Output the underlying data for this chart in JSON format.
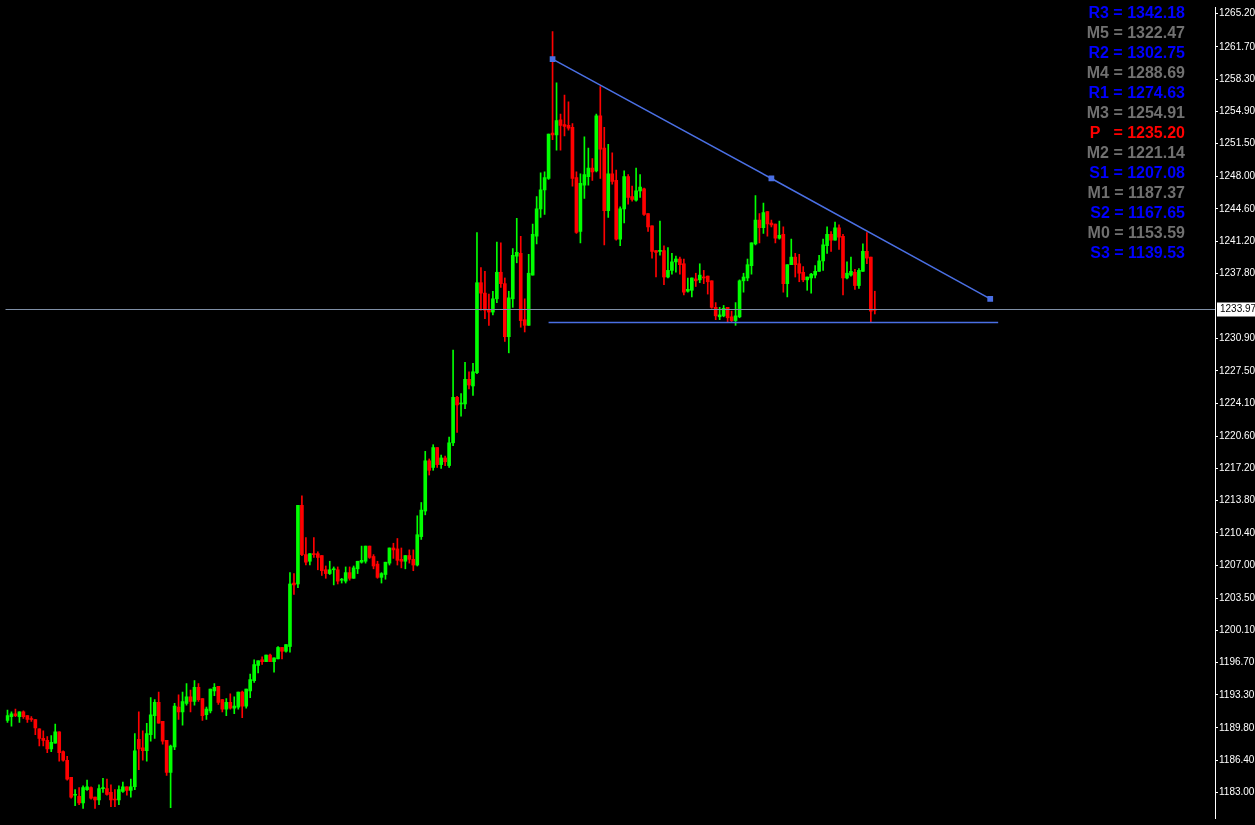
{
  "chart_data": {
    "type": "candlestick",
    "categories": [
      null,
      null,
      null,
      null,
      null,
      null,
      null,
      null,
      null,
      null,
      null,
      null,
      null,
      null,
      null,
      null,
      null,
      null,
      null,
      null,
      null,
      null,
      null,
      null,
      null,
      null,
      null,
      null,
      null,
      null,
      null,
      null,
      null,
      null,
      null,
      null,
      null,
      null,
      null,
      null,
      null,
      null,
      null,
      null,
      null,
      null,
      null,
      null,
      null,
      null,
      null,
      null,
      null,
      null,
      null,
      null,
      null,
      null,
      null,
      null,
      null,
      null,
      null,
      null,
      null,
      null,
      null,
      null,
      null,
      null,
      null,
      null,
      null,
      null,
      null,
      null,
      null,
      null,
      null,
      null,
      null,
      null,
      null,
      null,
      null,
      null,
      null,
      null,
      null,
      null,
      null,
      null,
      null,
      null,
      null,
      null,
      null,
      null,
      null,
      null,
      null,
      null,
      null,
      null,
      null,
      null,
      null,
      null,
      null,
      null,
      null,
      null,
      null,
      null,
      null,
      null,
      null,
      null,
      null,
      null,
      null,
      null,
      null,
      null,
      null,
      null,
      null,
      null,
      null,
      null,
      null,
      null,
      null,
      null,
      null,
      null,
      null,
      null,
      null,
      null,
      null,
      null,
      null,
      null,
      null,
      null,
      null,
      null,
      null,
      null,
      null,
      null,
      null,
      null,
      null,
      null,
      null,
      null,
      null,
      null,
      null,
      null,
      null,
      null,
      null,
      null,
      null,
      null,
      null,
      null,
      null,
      null,
      null,
      null,
      null,
      null,
      null,
      null,
      null,
      null,
      null,
      null,
      null,
      null,
      null,
      null,
      null,
      null,
      null,
      null,
      null,
      null,
      null,
      null,
      null,
      null,
      null,
      null,
      null,
      null,
      null,
      null,
      null,
      null,
      null,
      null,
      null,
      null,
      null,
      null,
      null,
      null,
      null,
      null,
      null,
      null,
      null,
      null,
      null,
      null,
      null,
      null,
      null,
      null,
      null,
      null,
      null,
      null,
      null,
      null,
      null,
      null,
      null,
      null,
      null,
      null,
      null,
      null,
      null,
      null,
      null,
      null,
      null,
      null,
      null,
      null,
      null,
      null,
      null,
      null,
      null,
      null,
      null,
      null,
      null,
      null,
      null,
      null,
      null,
      null,
      null,
      null,
      null,
      null,
      null,
      null,
      null,
      null,
      null,
      null,
      null,
      null,
      null,
      null,
      null,
      null,
      null,
      null,
      null,
      null,
      null,
      null,
      null,
      null,
      null,
      null,
      null,
      null,
      null,
      null,
      null,
      null,
      null,
      null,
      null,
      null,
      null,
      null,
      null,
      null,
      null,
      null,
      null,
      null
    ],
    "ohlc": [
      [
        1190.6,
        1191.7,
        1190.4,
        1191.1
      ],
      [
        1191.0,
        1191.5,
        1190.0,
        1191.3
      ],
      [
        1191.3,
        1191.8,
        1191.0,
        1191.1
      ],
      [
        1191.0,
        1191.5,
        1190.4,
        1191.5
      ],
      [
        1191.5,
        1191.6,
        1190.8,
        1191.0
      ],
      [
        1191.1,
        1191.1,
        1190.4,
        1190.7
      ],
      [
        1190.8,
        1191.0,
        1190.5,
        1190.7
      ],
      [
        1190.7,
        1190.7,
        1189.1,
        1189.8
      ],
      [
        1189.7,
        1189.7,
        1187.9,
        1188.7
      ],
      [
        1188.7,
        1189.5,
        1187.9,
        1188.5
      ],
      [
        1188.5,
        1188.9,
        1187.2,
        1187.6
      ],
      [
        1187.6,
        1189.0,
        1187.3,
        1188.3
      ],
      [
        1188.2,
        1190.2,
        1188.2,
        1189.4
      ],
      [
        1189.4,
        1189.4,
        1186.3,
        1187.2
      ],
      [
        1187.3,
        1187.4,
        1186.3,
        1186.4
      ],
      [
        1186.4,
        1186.8,
        1184.3,
        1184.4
      ],
      [
        1184.6,
        1184.6,
        1182.4,
        1182.5
      ],
      [
        1182.7,
        1183.3,
        1181.6,
        1182.7
      ],
      [
        1182.6,
        1183.5,
        1181.7,
        1181.9
      ],
      [
        1181.9,
        1183.7,
        1181.3,
        1183.5
      ],
      [
        1183.3,
        1184.3,
        1183.2,
        1183.6
      ],
      [
        1183.5,
        1183.6,
        1182.3,
        1182.4
      ],
      [
        1182.5,
        1182.5,
        1181.3,
        1182.2
      ],
      [
        1182.2,
        1183.8,
        1181.7,
        1183.4
      ],
      [
        1183.4,
        1184.5,
        1183.0,
        1183.4
      ],
      [
        1183.4,
        1184.4,
        1182.7,
        1182.8
      ],
      [
        1183.0,
        1183.8,
        1181.5,
        1182.2
      ],
      [
        1182.3,
        1183.3,
        1181.5,
        1182.2
      ],
      [
        1182.2,
        1183.7,
        1181.7,
        1183.3
      ],
      [
        1183.1,
        1184.1,
        1183.0,
        1183.6
      ],
      [
        1183.6,
        1183.6,
        1182.7,
        1183.2
      ],
      [
        1183.2,
        1184.4,
        1182.5,
        1183.6
      ],
      [
        1183.6,
        1189.2,
        1183.3,
        1187.4
      ],
      [
        1188.6,
        1191.5,
        1185.4,
        1187.6
      ],
      [
        1187.7,
        1189.5,
        1186.4,
        1187.4
      ],
      [
        1187.4,
        1190.3,
        1186.3,
        1189.2
      ],
      [
        1189.1,
        1193.0,
        1188.4,
        1191.2
      ],
      [
        1191.1,
        1192.8,
        1188.7,
        1192.5
      ],
      [
        1192.5,
        1193.6,
        1190.3,
        1190.3
      ],
      [
        1190.5,
        1190.5,
        1188.1,
        1188.4
      ],
      [
        1188.5,
        1188.5,
        1184.8,
        1185.1
      ],
      [
        1185.1,
        1188.0,
        1181.4,
        1187.9
      ],
      [
        1187.8,
        1192.4,
        1187.5,
        1192.1
      ],
      [
        1192.0,
        1193.3,
        1190.7,
        1191.5
      ],
      [
        1191.5,
        1193.6,
        1190.1,
        1192.6
      ],
      [
        1192.4,
        1194.5,
        1192.2,
        1193.1
      ],
      [
        1193.1,
        1193.8,
        1191.5,
        1192.6
      ],
      [
        1192.6,
        1194.8,
        1192.2,
        1194.1
      ],
      [
        1194.1,
        1194.5,
        1192.6,
        1192.8
      ],
      [
        1192.9,
        1192.9,
        1190.6,
        1191.1
      ],
      [
        1191.2,
        1192.0,
        1190.7,
        1191.8
      ],
      [
        1191.6,
        1193.9,
        1191.4,
        1193.9
      ],
      [
        1193.7,
        1194.5,
        1193.2,
        1194.1
      ],
      [
        1194.2,
        1194.2,
        1192.3,
        1192.5
      ],
      [
        1192.8,
        1192.8,
        1191.5,
        1191.8
      ],
      [
        1191.8,
        1192.9,
        1191.1,
        1192.5
      ],
      [
        1192.5,
        1193.4,
        1191.8,
        1191.9
      ],
      [
        1191.9,
        1193.1,
        1191.3,
        1192.1
      ],
      [
        1192.0,
        1193.6,
        1191.8,
        1193.6
      ],
      [
        1193.6,
        1193.7,
        1190.9,
        1192.1
      ],
      [
        1192.1,
        1193.9,
        1191.9,
        1193.9
      ],
      [
        1193.7,
        1195.5,
        1193.0,
        1194.9
      ],
      [
        1194.8,
        1197.0,
        1194.6,
        1196.5
      ],
      [
        1196.4,
        1196.9,
        1195.6,
        1196.9
      ],
      [
        1197.0,
        1197.3,
        1196.5,
        1196.8
      ],
      [
        1196.8,
        1197.5,
        1196.8,
        1197.5
      ],
      [
        1197.5,
        1197.6,
        1196.8,
        1196.8
      ],
      [
        1196.8,
        1197.2,
        1195.7,
        1197.2
      ],
      [
        1197.1,
        1198.4,
        1197.1,
        1198.3
      ],
      [
        1198.3,
        1198.3,
        1197.1,
        1197.9
      ],
      [
        1197.9,
        1198.6,
        1197.8,
        1198.6
      ],
      [
        1198.4,
        1206.2,
        1197.8,
        1205.0
      ],
      [
        1205.1,
        1206.1,
        1203.9,
        1204.9
      ],
      [
        1205.0,
        1213.3,
        1204.6,
        1213.3
      ],
      [
        1213.3,
        1214.3,
        1208.0,
        1208.1
      ],
      [
        1208.1,
        1209.9,
        1207.0,
        1207.3
      ],
      [
        1207.4,
        1208.2,
        1207.0,
        1208.2
      ],
      [
        1208.2,
        1209.9,
        1207.8,
        1208.1
      ],
      [
        1208.2,
        1208.4,
        1206.5,
        1207.8
      ],
      [
        1208.0,
        1208.0,
        1205.9,
        1206.4
      ],
      [
        1206.5,
        1206.9,
        1205.6,
        1206.1
      ],
      [
        1206.1,
        1207.4,
        1206.0,
        1206.5
      ],
      [
        1206.5,
        1206.8,
        1204.9,
        1206.6
      ],
      [
        1206.5,
        1206.8,
        1205.0,
        1205.3
      ],
      [
        1205.4,
        1205.6,
        1205.1,
        1205.5
      ],
      [
        1205.3,
        1206.8,
        1205.1,
        1206.2
      ],
      [
        1206.2,
        1206.8,
        1205.4,
        1205.6
      ],
      [
        1205.6,
        1206.9,
        1205.6,
        1206.7
      ],
      [
        1206.6,
        1207.4,
        1206.1,
        1207.4
      ],
      [
        1207.3,
        1209.0,
        1207.2,
        1207.5
      ],
      [
        1207.4,
        1209.0,
        1207.2,
        1209.0
      ],
      [
        1209.0,
        1209.0,
        1207.7,
        1207.8
      ],
      [
        1207.9,
        1208.1,
        1206.6,
        1206.9
      ],
      [
        1207.1,
        1207.4,
        1205.6,
        1205.7
      ],
      [
        1205.7,
        1206.2,
        1205.1,
        1206.1
      ],
      [
        1206.0,
        1207.3,
        1205.5,
        1207.3
      ],
      [
        1207.2,
        1208.8,
        1207.0,
        1208.8
      ],
      [
        1208.8,
        1209.3,
        1207.7,
        1208.6
      ],
      [
        1208.7,
        1209.8,
        1207.0,
        1207.5
      ],
      [
        1207.6,
        1208.8,
        1206.7,
        1207.4
      ],
      [
        1207.4,
        1208.0,
        1206.6,
        1208.0
      ],
      [
        1208.0,
        1208.6,
        1207.2,
        1207.6
      ],
      [
        1207.6,
        1208.6,
        1206.4,
        1207.0
      ],
      [
        1207.0,
        1212.2,
        1206.9,
        1210.2
      ],
      [
        1210.0,
        1213.6,
        1209.7,
        1212.8
      ],
      [
        1212.7,
        1219.0,
        1212.3,
        1218.0
      ],
      [
        1218.0,
        1218.2,
        1216.5,
        1217.0
      ],
      [
        1217.3,
        1219.7,
        1217.0,
        1219.4
      ],
      [
        1219.4,
        1219.4,
        1217.3,
        1217.6
      ],
      [
        1217.6,
        1218.6,
        1217.2,
        1218.3
      ],
      [
        1218.3,
        1218.5,
        1217.5,
        1217.9
      ],
      [
        1217.5,
        1220.5,
        1217.3,
        1219.9
      ],
      [
        1219.9,
        1229.7,
        1219.6,
        1224.7
      ],
      [
        1224.7,
        1224.8,
        1221.0,
        1223.9
      ],
      [
        1224.0,
        1225.1,
        1222.7,
        1224.1
      ],
      [
        1224.0,
        1228.4,
        1223.5,
        1226.6
      ],
      [
        1226.6,
        1227.4,
        1225.6,
        1226.0
      ],
      [
        1225.9,
        1228.3,
        1224.9,
        1227.4
      ],
      [
        1227.3,
        1242.1,
        1227.2,
        1236.8
      ],
      [
        1236.8,
        1238.4,
        1233.9,
        1235.7
      ],
      [
        1235.7,
        1238.0,
        1233.0,
        1233.9
      ],
      [
        1233.9,
        1235.6,
        1232.3,
        1233.7
      ],
      [
        1233.7,
        1235.9,
        1233.4,
        1235.1
      ],
      [
        1235.1,
        1241.1,
        1234.7,
        1237.9
      ],
      [
        1237.9,
        1241.0,
        1236.3,
        1236.7
      ],
      [
        1236.7,
        1237.3,
        1230.6,
        1231.1
      ],
      [
        1231.1,
        1235.9,
        1229.4,
        1235.2
      ],
      [
        1235.1,
        1240.4,
        1234.2,
        1239.7
      ],
      [
        1239.6,
        1243.6,
        1238.9,
        1240.0
      ],
      [
        1239.9,
        1241.7,
        1232.1,
        1232.8
      ],
      [
        1232.9,
        1235.1,
        1231.6,
        1232.3
      ],
      [
        1232.3,
        1239.8,
        1232.3,
        1237.8
      ],
      [
        1237.6,
        1243.0,
        1237.6,
        1241.9
      ],
      [
        1241.7,
        1245.9,
        1240.9,
        1244.6
      ],
      [
        1244.6,
        1248.4,
        1243.7,
        1246.6
      ],
      [
        1246.6,
        1248.5,
        1244.0,
        1247.9
      ],
      [
        1247.8,
        1252.5,
        1247.7,
        1252.5
      ],
      [
        1252.6,
        1263.3,
        1251.9,
        1252.4
      ],
      [
        1252.4,
        1257.9,
        1250.8,
        1253.9
      ],
      [
        1254.0,
        1254.6,
        1250.8,
        1253.4
      ],
      [
        1253.5,
        1256.6,
        1252.3,
        1253.3
      ],
      [
        1253.4,
        1255.9,
        1252.9,
        1253.1
      ],
      [
        1253.2,
        1253.6,
        1247.0,
        1247.8
      ],
      [
        1247.9,
        1248.5,
        1242.0,
        1242.1
      ],
      [
        1242.2,
        1248.3,
        1241.0,
        1247.3
      ],
      [
        1247.1,
        1252.2,
        1245.7,
        1248.2
      ],
      [
        1248.0,
        1251.0,
        1247.1,
        1248.9
      ],
      [
        1248.9,
        1249.9,
        1247.6,
        1248.5
      ],
      [
        1248.6,
        1254.6,
        1248.5,
        1254.4
      ],
      [
        1254.4,
        1257.5,
        1247.8,
        1250.9
      ],
      [
        1251.0,
        1253.2,
        1240.8,
        1244.4
      ],
      [
        1244.4,
        1251.4,
        1243.7,
        1248.3
      ],
      [
        1248.3,
        1250.5,
        1247.2,
        1247.5
      ],
      [
        1247.6,
        1248.7,
        1241.3,
        1241.4
      ],
      [
        1241.4,
        1244.8,
        1240.7,
        1244.6
      ],
      [
        1244.6,
        1248.6,
        1243.1,
        1248.0
      ],
      [
        1248.0,
        1248.2,
        1245.1,
        1245.8
      ],
      [
        1245.9,
        1247.0,
        1245.4,
        1245.6
      ],
      [
        1245.5,
        1248.9,
        1245.4,
        1246.5
      ],
      [
        1246.5,
        1248.2,
        1245.8,
        1246.9
      ],
      [
        1246.7,
        1246.8,
        1243.9,
        1244.0
      ],
      [
        1244.1,
        1244.1,
        1242.2,
        1242.7
      ],
      [
        1242.8,
        1242.8,
        1239.4,
        1240.1
      ],
      [
        1240.2,
        1240.2,
        1237.4,
        1240.0
      ],
      [
        1240.1,
        1243.3,
        1239.7,
        1240.2
      ],
      [
        1240.2,
        1240.7,
        1236.6,
        1237.4
      ],
      [
        1237.4,
        1240.5,
        1237.3,
        1238.1
      ],
      [
        1238.1,
        1239.9,
        1237.7,
        1239.0
      ],
      [
        1239.0,
        1239.6,
        1237.9,
        1239.3
      ],
      [
        1239.3,
        1239.5,
        1237.7,
        1238.7
      ],
      [
        1238.8,
        1239.3,
        1235.5,
        1235.8
      ],
      [
        1235.9,
        1237.3,
        1235.8,
        1236.1
      ],
      [
        1236.0,
        1237.3,
        1235.3,
        1237.3
      ],
      [
        1237.2,
        1237.8,
        1236.4,
        1237.0
      ],
      [
        1237.1,
        1238.8,
        1236.8,
        1237.6
      ],
      [
        1237.4,
        1238.1,
        1236.7,
        1237.3
      ],
      [
        1237.5,
        1237.5,
        1235.6,
        1236.9
      ],
      [
        1237.0,
        1237.0,
        1234.1,
        1234.2
      ],
      [
        1234.2,
        1234.7,
        1232.9,
        1233.3
      ],
      [
        1233.2,
        1234.2,
        1232.9,
        1233.4
      ],
      [
        1233.3,
        1234.4,
        1233.2,
        1234.1
      ],
      [
        1234.2,
        1234.2,
        1232.6,
        1233.1
      ],
      [
        1233.2,
        1233.8,
        1232.7,
        1232.8
      ],
      [
        1232.8,
        1234.7,
        1232.3,
        1233.3
      ],
      [
        1233.2,
        1237.1,
        1233.1,
        1237.0
      ],
      [
        1237.0,
        1237.8,
        1235.8,
        1237.4
      ],
      [
        1237.3,
        1239.3,
        1237.0,
        1238.7
      ],
      [
        1238.6,
        1241.0,
        1237.7,
        1241.0
      ],
      [
        1240.9,
        1246.0,
        1240.8,
        1243.4
      ],
      [
        1243.4,
        1244.1,
        1241.0,
        1242.6
      ],
      [
        1242.6,
        1245.2,
        1242.0,
        1244.2
      ],
      [
        1244.3,
        1244.3,
        1241.7,
        1243.0
      ],
      [
        1243.1,
        1243.4,
        1242.7,
        1242.9
      ],
      [
        1243.0,
        1243.0,
        1241.0,
        1241.5
      ],
      [
        1241.5,
        1243.3,
        1241.4,
        1241.8
      ],
      [
        1241.9,
        1242.7,
        1235.8,
        1236.7
      ],
      [
        1236.7,
        1238.7,
        1235.3,
        1238.7
      ],
      [
        1238.7,
        1241.4,
        1238.7,
        1239.5
      ],
      [
        1239.5,
        1239.9,
        1237.4,
        1238.7
      ],
      [
        1238.8,
        1239.8,
        1236.9,
        1237.8
      ],
      [
        1237.9,
        1238.5,
        1236.9,
        1237.1
      ],
      [
        1237.1,
        1237.4,
        1236.0,
        1237.4
      ],
      [
        1237.3,
        1237.8,
        1235.7,
        1237.7
      ],
      [
        1237.6,
        1238.6,
        1237.3,
        1238.0
      ],
      [
        1238.0,
        1239.7,
        1238.0,
        1239.1
      ],
      [
        1239.1,
        1241.4,
        1238.1,
        1240.8
      ],
      [
        1240.7,
        1242.7,
        1239.9,
        1241.9
      ],
      [
        1241.9,
        1242.2,
        1240.1,
        1241.3
      ],
      [
        1241.3,
        1243.2,
        1241.3,
        1242.6
      ],
      [
        1242.6,
        1242.9,
        1240.3,
        1241.6
      ],
      [
        1241.7,
        1241.9,
        1235.5,
        1237.3
      ],
      [
        1237.3,
        1239.0,
        1237.2,
        1237.8
      ],
      [
        1237.6,
        1239.5,
        1237.5,
        1238.0
      ],
      [
        1237.9,
        1238.2,
        1236.1,
        1236.5
      ],
      [
        1236.5,
        1238.3,
        1236.2,
        1238.1
      ],
      [
        1238.0,
        1240.9,
        1238.0,
        1240.1
      ],
      [
        1240.1,
        1242.1,
        1238.8,
        1239.4
      ],
      [
        1239.5,
        1239.5,
        1232.6,
        1233.8
      ],
      [
        1234.0,
        1235.9,
        1233.5,
        1233.9
      ],
      null,
      null,
      null,
      null,
      null,
      null,
      null,
      null,
      null,
      null,
      null,
      null,
      null,
      null,
      null,
      null,
      null,
      null,
      null,
      null,
      null,
      null,
      null,
      null,
      null,
      null,
      null,
      null,
      null,
      null,
      null,
      null,
      null,
      null,
      null,
      null,
      null,
      null,
      null,
      null,
      null,
      null,
      null,
      null,
      null,
      null,
      null,
      null,
      null,
      null,
      null,
      null,
      null,
      null,
      null,
      null,
      null,
      null,
      null,
      null,
      null,
      null,
      null,
      null,
      null,
      null,
      null,
      null,
      null,
      null,
      null,
      null,
      null,
      null,
      null,
      null,
      null,
      null,
      null,
      null,
      null,
      null,
      null,
      null,
      null
    ],
    "colors": [
      "#00ff00",
      "#00ff00",
      "#ff0000",
      "#00ff00",
      "#ff0000",
      "#ff0000",
      "#ff0000",
      "#ff0000",
      "#ff0000",
      "#ff0000",
      "#ff0000",
      "#00ff00",
      "#00ff00",
      "#ff0000",
      "#ff0000",
      "#ff0000",
      "#ff0000",
      "#00ff00",
      "#ff0000",
      "#00ff00",
      "#00ff00",
      "#ff0000",
      "#ff0000",
      "#00ff00",
      "#00ff00",
      "#ff0000",
      "#ff0000",
      "#ff0000",
      "#00ff00",
      "#00ff00",
      "#ff0000",
      "#00ff00",
      "#00ff00",
      "#ff0000",
      "#ff0000",
      "#00ff00",
      "#00ff00",
      "#00ff00",
      "#ff0000",
      "#ff0000",
      "#ff0000",
      "#00ff00",
      "#00ff00",
      "#ff0000",
      "#00ff00",
      "#00ff00",
      "#ff0000",
      "#00ff00",
      "#ff0000",
      "#ff0000",
      "#00ff00",
      "#00ff00",
      "#00ff00",
      "#ff0000",
      "#ff0000",
      "#00ff00",
      "#ff0000",
      "#00ff00",
      "#00ff00",
      "#ff0000",
      "#00ff00",
      "#00ff00",
      "#00ff00",
      "#00ff00",
      "#ff0000",
      "#00ff00",
      "#ff0000",
      "#00ff00",
      "#00ff00",
      "#ff0000",
      "#00ff00",
      "#00ff00",
      "#ff0000",
      "#00ff00",
      "#ff0000",
      "#ff0000",
      "#00ff00",
      "#ff0000",
      "#ff0000",
      "#ff0000",
      "#ff0000",
      "#00ff00",
      "#00ff00",
      "#ff0000",
      "#00ff00",
      "#00ff00",
      "#ff0000",
      "#00ff00",
      "#00ff00",
      "#00ff00",
      "#00ff00",
      "#ff0000",
      "#ff0000",
      "#ff0000",
      "#00ff00",
      "#00ff00",
      "#00ff00",
      "#ff0000",
      "#ff0000",
      "#ff0000",
      "#00ff00",
      "#ff0000",
      "#ff0000",
      "#00ff00",
      "#00ff00",
      "#00ff00",
      "#ff0000",
      "#00ff00",
      "#ff0000",
      "#00ff00",
      "#ff0000",
      "#00ff00",
      "#00ff00",
      "#ff0000",
      "#00ff00",
      "#00ff00",
      "#ff0000",
      "#00ff00",
      "#00ff00",
      "#ff0000",
      "#ff0000",
      "#ff0000",
      "#00ff00",
      "#00ff00",
      "#ff0000",
      "#ff0000",
      "#00ff00",
      "#00ff00",
      "#00ff00",
      "#ff0000",
      "#ff0000",
      "#00ff00",
      "#00ff00",
      "#00ff00",
      "#00ff00",
      "#00ff00",
      "#00ff00",
      "#ff0000",
      "#00ff00",
      "#ff0000",
      "#ff0000",
      "#ff0000",
      "#ff0000",
      "#ff0000",
      "#00ff00",
      "#00ff00",
      "#00ff00",
      "#ff0000",
      "#00ff00",
      "#ff0000",
      "#ff0000",
      "#00ff00",
      "#ff0000",
      "#ff0000",
      "#00ff00",
      "#00ff00",
      "#ff0000",
      "#ff0000",
      "#00ff00",
      "#00ff00",
      "#ff0000",
      "#ff0000",
      "#ff0000",
      "#ff0000",
      "#00ff00",
      "#ff0000",
      "#00ff00",
      "#00ff00",
      "#00ff00",
      "#ff0000",
      "#ff0000",
      "#00ff00",
      "#00ff00",
      "#ff0000",
      "#00ff00",
      "#ff0000",
      "#ff0000",
      "#ff0000",
      "#ff0000",
      "#00ff00",
      "#00ff00",
      "#ff0000",
      "#ff0000",
      "#00ff00",
      "#00ff00",
      "#00ff00",
      "#00ff00",
      "#00ff00",
      "#00ff00",
      "#ff0000",
      "#00ff00",
      "#ff0000",
      "#ff0000",
      "#ff0000",
      "#00ff00",
      "#ff0000",
      "#00ff00",
      "#00ff00",
      "#ff0000",
      "#ff0000",
      "#ff0000",
      "#00ff00",
      "#00ff00",
      "#00ff00",
      "#00ff00",
      "#00ff00",
      "#00ff00",
      "#ff0000",
      "#00ff00",
      "#ff0000",
      "#ff0000",
      "#00ff00",
      "#00ff00",
      "#ff0000",
      "#00ff00",
      "#00ff00",
      "#ff0000",
      "#ff0000",
      "#ff0000",
      null,
      null,
      null,
      null,
      null,
      null,
      null,
      null,
      null,
      null,
      null,
      null,
      null,
      null,
      null,
      null,
      null,
      null,
      null,
      null,
      null,
      null,
      null,
      null,
      null,
      null,
      null,
      null,
      null,
      null,
      null,
      null,
      null,
      null,
      null,
      null,
      null,
      null,
      null,
      null,
      null,
      null,
      null,
      null,
      null,
      null,
      null,
      null,
      null,
      null,
      null,
      null,
      null,
      null,
      null,
      null,
      null,
      null,
      null,
      null,
      null,
      null,
      null,
      null,
      null,
      null,
      null,
      null,
      null,
      null,
      null,
      null,
      null,
      null,
      null,
      null,
      null,
      null,
      null,
      null,
      null,
      null,
      null,
      null,
      null
    ],
    "series": [
      {
        "type": "line",
        "color": "#4a6fe3",
        "marker": "square",
        "values": [
          null,
          null,
          null,
          null,
          null,
          null,
          null,
          null,
          null,
          null,
          null,
          null,
          null,
          null,
          null,
          null,
          null,
          null,
          null,
          null,
          null,
          null,
          null,
          null,
          null,
          null,
          null,
          null,
          null,
          null,
          null,
          null,
          null,
          null,
          null,
          null,
          null,
          null,
          null,
          null,
          null,
          null,
          null,
          null,
          null,
          null,
          null,
          null,
          null,
          null,
          null,
          null,
          null,
          null,
          null,
          null,
          null,
          null,
          null,
          null,
          null,
          null,
          null,
          null,
          null,
          null,
          null,
          null,
          null,
          null,
          null,
          null,
          null,
          null,
          null,
          null,
          null,
          null,
          null,
          null,
          null,
          null,
          null,
          null,
          null,
          null,
          null,
          null,
          null,
          null,
          null,
          null,
          null,
          null,
          null,
          null,
          null,
          null,
          null,
          null,
          null,
          null,
          null,
          null,
          null,
          null,
          null,
          null,
          null,
          null,
          null,
          null,
          null,
          null,
          null,
          null,
          null,
          null,
          null,
          null,
          null,
          null,
          null,
          null,
          null,
          null,
          null,
          null,
          null,
          null,
          null,
          null,
          null,
          null,
          null,
          null,
          null,
          1260.4,
          null,
          null,
          null,
          null,
          null,
          null,
          null,
          null,
          null,
          null,
          null,
          null,
          null,
          null,
          null,
          null,
          null,
          null,
          null,
          null,
          null,
          null,
          null,
          null,
          null,
          null,
          null,
          null,
          null,
          null,
          null,
          null,
          null,
          null,
          null,
          null,
          null,
          null,
          null,
          null,
          null,
          null,
          null,
          null,
          null,
          null,
          null,
          null,
          null,
          null,
          null,
          null,
          null,
          null,
          1247.8,
          null,
          null,
          null,
          null,
          null,
          null,
          null,
          null,
          null,
          null,
          null,
          null,
          null,
          null,
          null,
          null,
          null,
          null,
          null,
          null,
          null,
          null,
          null,
          null,
          null,
          null,
          null,
          null,
          null,
          null,
          null,
          null,
          null,
          null,
          null,
          null,
          null,
          null,
          null,
          null,
          null,
          null,
          null,
          null,
          null,
          null,
          null,
          null,
          null,
          null,
          null,
          null,
          null,
          null,
          1235.1,
          null,
          null,
          null,
          null,
          null,
          null,
          null,
          null,
          null,
          null,
          null,
          null,
          null,
          null,
          null,
          null,
          null,
          null,
          null,
          null,
          null,
          null,
          null,
          null,
          null,
          null,
          null,
          null,
          null,
          null,
          null,
          null,
          null,
          null,
          null,
          null,
          null,
          null,
          null,
          null,
          null,
          null,
          null,
          null,
          null,
          null,
          null,
          null,
          null,
          null,
          null,
          null,
          null,
          null,
          null,
          null
        ]
      },
      {
        "type": "line",
        "color": "#4a6fe3",
        "marker": "none",
        "values": [
          null,
          null,
          null,
          null,
          null,
          null,
          null,
          null,
          null,
          null,
          null,
          null,
          null,
          null,
          null,
          null,
          null,
          null,
          null,
          null,
          null,
          null,
          null,
          null,
          null,
          null,
          null,
          null,
          null,
          null,
          null,
          null,
          null,
          null,
          null,
          null,
          null,
          null,
          null,
          null,
          null,
          null,
          null,
          null,
          null,
          null,
          null,
          null,
          null,
          null,
          null,
          null,
          null,
          null,
          null,
          null,
          null,
          null,
          null,
          null,
          null,
          null,
          null,
          null,
          null,
          null,
          null,
          null,
          null,
          null,
          null,
          null,
          null,
          null,
          null,
          null,
          null,
          null,
          null,
          null,
          null,
          null,
          null,
          null,
          null,
          null,
          null,
          null,
          null,
          null,
          null,
          null,
          null,
          null,
          null,
          null,
          null,
          null,
          null,
          null,
          null,
          null,
          null,
          null,
          null,
          null,
          null,
          null,
          null,
          null,
          null,
          null,
          null,
          null,
          null,
          null,
          null,
          null,
          null,
          null,
          null,
          null,
          null,
          null,
          null,
          null,
          null,
          null,
          null,
          null,
          null,
          null,
          null,
          null,
          null,
          null,
          1232.6,
          null,
          null,
          null,
          null,
          null,
          null,
          null,
          null,
          null,
          null,
          null,
          null,
          null,
          null,
          null,
          null,
          null,
          null,
          null,
          null,
          null,
          null,
          null,
          null,
          null,
          null,
          null,
          null,
          null,
          null,
          null,
          null,
          null,
          null,
          null,
          null,
          null,
          null,
          null,
          null,
          null,
          null,
          null,
          null,
          null,
          null,
          null,
          null,
          null,
          null,
          null,
          null,
          null,
          null,
          null,
          null,
          null,
          null,
          null,
          null,
          null,
          null,
          null,
          null,
          null,
          null,
          null,
          null,
          null,
          null,
          null,
          null,
          null,
          null,
          null,
          null,
          null,
          null,
          null,
          null,
          null,
          null,
          null,
          null,
          null,
          null,
          null,
          null,
          null,
          null,
          null,
          null,
          null,
          null,
          null,
          null,
          null,
          null,
          null,
          null,
          null,
          null,
          null,
          null,
          null,
          null,
          null,
          null,
          null,
          null,
          null,
          null,
          1232.6,
          null,
          null,
          null,
          null,
          null,
          null,
          null,
          null,
          null,
          null,
          null,
          null,
          null,
          null,
          null,
          null,
          null,
          null,
          null,
          null,
          null,
          null,
          null,
          null,
          null,
          null,
          null,
          null,
          null,
          null,
          null,
          null,
          null,
          null,
          null,
          null,
          null,
          null,
          null,
          null,
          null,
          null,
          null,
          null,
          null,
          null,
          null,
          null,
          null,
          null,
          null,
          null,
          null,
          null
        ]
      }
    ],
    "ylim": [
      1180.3,
      1265.9
    ],
    "yticks": [
      {
        "value": 1183.0,
        "label": "1183.00"
      },
      {
        "value": 1186.4,
        "label": "1186.40"
      },
      {
        "value": 1189.8,
        "label": "1189.80"
      },
      {
        "value": 1193.3,
        "label": "1193.30"
      },
      {
        "value": 1196.7,
        "label": "1196.70"
      },
      {
        "value": 1200.1,
        "label": "1200.10"
      },
      {
        "value": 1203.5,
        "label": "1203.50"
      },
      {
        "value": 1207.0,
        "label": "1207.00"
      },
      {
        "value": 1210.4,
        "label": "1210.40"
      },
      {
        "value": 1213.8,
        "label": "1213.80"
      },
      {
        "value": 1217.2,
        "label": "1217.20"
      },
      {
        "value": 1220.6,
        "label": "1220.60"
      },
      {
        "value": 1224.1,
        "label": "1224.10"
      },
      {
        "value": 1227.5,
        "label": "1227.50"
      },
      {
        "value": 1230.9,
        "label": "1230.90"
      },
      {
        "value": 1237.8,
        "label": "1237.80"
      },
      {
        "value": 1241.2,
        "label": "1241.20"
      },
      {
        "value": 1244.6,
        "label": "1244.60"
      },
      {
        "value": 1248.0,
        "label": "1248.00"
      },
      {
        "value": 1251.5,
        "label": "1251.50"
      },
      {
        "value": 1254.9,
        "label": "1254.90"
      },
      {
        "value": 1258.3,
        "label": "1258.30"
      },
      {
        "value": 1261.7,
        "label": "1261.70"
      },
      {
        "value": 1265.2,
        "label": "1265.20"
      }
    ],
    "tick_labels": "y",
    "grid": false,
    "legend": false,
    "ref_lines": [
      {
        "axis": "y",
        "value": 1233.97,
        "label": "1233.97",
        "color": "#7f8fa6"
      }
    ],
    "annotations": [
      "R3 = 1342.18",
      "M5 = 1322.47",
      "R2 = 1302.75",
      "M4 = 1288.69",
      "R1 = 1274.63",
      "M3 = 1254.91",
      "P   = 1235.20",
      "M2 = 1221.14",
      "S1 = 1207.08",
      "M1 = 1187.37",
      "S2 = 1167.65",
      "M0 = 1153.59",
      "S3 = 1139.53"
    ]
  }
}
